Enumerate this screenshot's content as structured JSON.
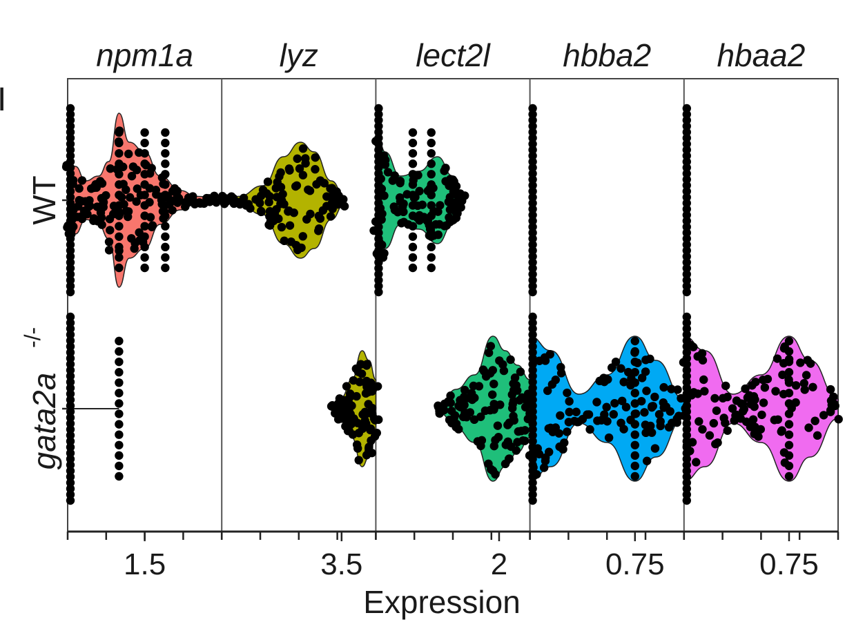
{
  "chart_data": {
    "type": "violin",
    "xlabel": "Expression",
    "panel_letter": "I",
    "groups": [
      {
        "label": "WT",
        "italic": false
      },
      {
        "label": "gata2a",
        "superscript": "-/-",
        "italic": true
      }
    ],
    "panels": [
      {
        "gene": "npm1a",
        "tick_label": "1.5",
        "tick_value": 1.5,
        "xlim": [
          0,
          3.0
        ],
        "color": "#F8766D",
        "series": [
          {
            "group": "WT",
            "dot_columns": [
              0.0,
              1.0,
              1.5,
              1.9
            ],
            "density": [
              [
                0.0,
                0.4
              ],
              [
                0.15,
                0.35
              ],
              [
                0.35,
                0.2
              ],
              [
                0.6,
                0.25
              ],
              [
                0.8,
                0.4
              ],
              [
                1.0,
                0.9
              ],
              [
                1.2,
                0.6
              ],
              [
                1.5,
                0.5
              ],
              [
                1.8,
                0.25
              ],
              [
                2.2,
                0.1
              ],
              [
                2.5,
                0.04
              ],
              [
                3.0,
                0.02
              ]
            ]
          },
          {
            "group": "gata2a-/-",
            "dot_columns": [
              0.0,
              1.0
            ],
            "density": []
          }
        ]
      },
      {
        "gene": "lyz",
        "tick_label": "3.5",
        "tick_value": 3.5,
        "xlim": [
          0,
          4.5
        ],
        "color": "#B3B300",
        "series": [
          {
            "group": "WT",
            "density": [
              [
                0.0,
                0.02
              ],
              [
                0.5,
                0.04
              ],
              [
                1.2,
                0.15
              ],
              [
                1.8,
                0.45
              ],
              [
                2.3,
                0.6
              ],
              [
                2.7,
                0.5
              ],
              [
                3.2,
                0.2
              ],
              [
                3.6,
                0.03
              ]
            ]
          },
          {
            "group": "gata2a-/-",
            "density": [
              [
                3.25,
                0.02
              ],
              [
                3.5,
                0.12
              ],
              [
                3.8,
                0.3
              ],
              [
                4.1,
                0.6
              ],
              [
                4.3,
                0.5
              ],
              [
                4.5,
                0.3
              ]
            ]
          }
        ]
      },
      {
        "gene": "lect2l",
        "tick_label": "2",
        "tick_value": 2,
        "xlim": [
          0,
          2.5
        ],
        "color": "#1FBF7A",
        "series": [
          {
            "group": "WT",
            "dot_columns": [
              0.0,
              0.6,
              0.9
            ],
            "density": [
              [
                0.0,
                0.8
              ],
              [
                0.15,
                0.5
              ],
              [
                0.4,
                0.25
              ],
              [
                0.7,
                0.3
              ],
              [
                1.0,
                0.45
              ],
              [
                1.25,
                0.25
              ],
              [
                1.4,
                0.05
              ]
            ]
          },
          {
            "group": "gata2a-/-",
            "density": [
              [
                1.05,
                0.05
              ],
              [
                1.3,
                0.2
              ],
              [
                1.6,
                0.35
              ],
              [
                1.9,
                0.75
              ],
              [
                2.1,
                0.6
              ],
              [
                2.3,
                0.45
              ],
              [
                2.5,
                0.3
              ]
            ]
          }
        ]
      },
      {
        "gene": "hbba2",
        "tick_label": "0.75",
        "tick_value": 0.75,
        "xlim": [
          0,
          1.1
        ],
        "color": "#00A9F4",
        "series": [
          {
            "group": "WT",
            "dot_columns": [
              0.0
            ],
            "density": []
          },
          {
            "group": "gata2a-/-",
            "dot_columns": [
              0.0,
              0.75
            ],
            "density": [
              [
                0.0,
                0.75
              ],
              [
                0.15,
                0.6
              ],
              [
                0.35,
                0.15
              ],
              [
                0.55,
                0.35
              ],
              [
                0.75,
                0.75
              ],
              [
                0.9,
                0.5
              ],
              [
                1.1,
                0.1
              ]
            ]
          }
        ]
      },
      {
        "gene": "hbaa2",
        "tick_label": "0.75",
        "tick_value": 0.75,
        "xlim": [
          0,
          1.1
        ],
        "color": "#F06BF0",
        "series": [
          {
            "group": "WT",
            "dot_columns": [
              0.0
            ],
            "density": []
          },
          {
            "group": "gata2a-/-",
            "dot_columns": [
              0.0,
              0.75
            ],
            "density": [
              [
                0.0,
                0.75
              ],
              [
                0.15,
                0.6
              ],
              [
                0.35,
                0.15
              ],
              [
                0.55,
                0.35
              ],
              [
                0.75,
                0.75
              ],
              [
                0.9,
                0.5
              ],
              [
                1.1,
                0.1
              ]
            ]
          }
        ]
      }
    ]
  }
}
